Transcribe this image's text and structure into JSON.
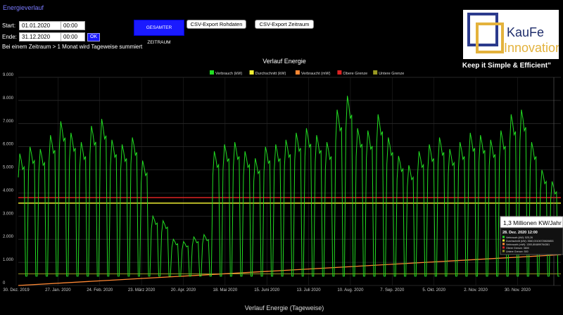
{
  "header": {
    "title_link": "Energieverlauf"
  },
  "form": {
    "start_label": "Start:",
    "end_label": "Ende:",
    "start_date": "01.01.2020",
    "start_time": "00:00",
    "end_date": "31.12.2020",
    "end_time": "00:00",
    "ok_label": "OK",
    "note": "Bei einem Zeitraum > 1 Monat wird Tageweise summiert"
  },
  "buttons": {
    "full_range": "GESAMTER ZEITRAUM",
    "csv_raw": "CSV-Export Rohdaten",
    "csv_range": "CSV-Export Zeitraum"
  },
  "brand": {
    "name_1": "KauFe",
    "name_2": "Innovation",
    "slogan": "Keep it Simple & Efficient”",
    "colors": {
      "navy": "#2b3a8c",
      "gold": "#e3b23c",
      "text_dark": "#1f2d6b"
    }
  },
  "chart_data": {
    "type": "line",
    "title": "Verlauf Energie",
    "xlabel": "Verlauf Energie (Tageweise)",
    "ylabel": "",
    "ylim": [
      0,
      9000
    ],
    "y_ticks": [
      "0",
      "1.000",
      "2.000",
      "3.000",
      "4.000",
      "5.000",
      "6.000",
      "7.000",
      "8.000",
      "9.000"
    ],
    "x_tick_labels": [
      "30. Dez. 2019",
      "27. Jan. 2020",
      "24. Feb. 2020",
      "23. März 2020",
      "20. Apr. 2020",
      "18. Mai 2020",
      "15. Juni 2020",
      "13. Juli 2020",
      "10. Aug. 2020",
      "7. Sep. 2020",
      "5. Okt. 2020",
      "2. Nov. 2020",
      "30. Nov. 2020"
    ],
    "grid": true,
    "legend_placement": "top-center",
    "series": [
      {
        "name": "Verbrauch (kW)",
        "color": "#22dd22",
        "weekly_weekday_levels": [
          5700,
          6000,
          5900,
          6500,
          7100,
          6600,
          6200,
          6900,
          7200,
          6300,
          6100,
          6400,
          5400,
          3000,
          2800,
          2000,
          1900,
          2100,
          2200,
          5800,
          6100,
          6200,
          5800,
          5500,
          6000,
          6100,
          6300,
          6600,
          6800,
          6500,
          6200,
          7600,
          8200,
          6800,
          6700,
          7400,
          6400,
          5600,
          5200,
          5800,
          6100,
          6400,
          5900,
          6200,
          6600,
          6500,
          6300,
          6700,
          7400,
          7600,
          6200,
          5000,
          4500
        ],
        "weekend_level": 400
      },
      {
        "name": "Durchschnitt (kW)",
        "color": "#eeee33",
        "values": [
          3560
        ]
      },
      {
        "name": "Verbraucht (mW)",
        "color": "#ff8833",
        "start": 0,
        "end": 1330
      },
      {
        "name": "Obere Grenze",
        "color": "#dd2222",
        "values": [
          3800
        ]
      },
      {
        "name": "Untere Grenze",
        "color": "#999922",
        "values": [
          500
        ]
      }
    ],
    "tooltip": {
      "headline": "1,3 Millionen KW/Jahr",
      "date": "28. Dez. 2020 12:00",
      "lines": [
        {
          "text": "Verbrauch (kW): 525,26",
          "color": "#22dd22"
        },
        {
          "text": "Durchschnitt (kW): 3560,00106725826853",
          "color": "#eeee33"
        },
        {
          "text": "Verbraucht (mW): 1300,804899764381",
          "color": "#ff8833"
        },
        {
          "text": "Obere Grenze: 3800",
          "color": "#dd2222"
        },
        {
          "text": "Untere Grenze: 500",
          "color": "#999922"
        }
      ]
    }
  }
}
